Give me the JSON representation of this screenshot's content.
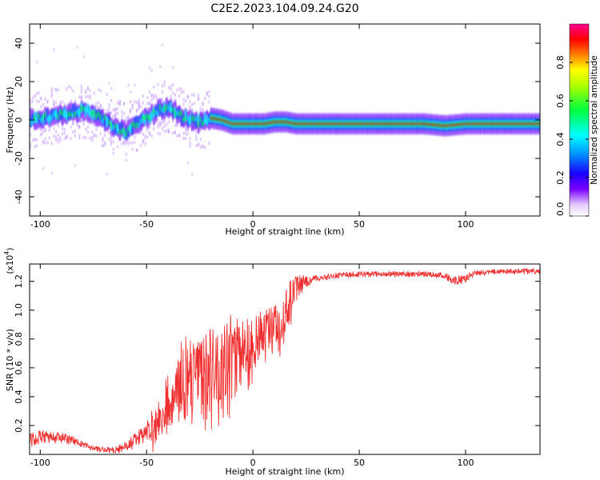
{
  "figure_title": "C2E2.2023.104.09.24.G20",
  "chart_data": [
    {
      "type": "heatmap",
      "xlabel": "Height of straight line (km)",
      "ylabel": "Frequency (Hz)",
      "xlim": [
        -105,
        135
      ],
      "ylim": [
        -50,
        50
      ],
      "x_ticks": [
        -100,
        -50,
        0,
        50,
        100
      ],
      "y_ticks": [
        -40,
        -20,
        0,
        20,
        40
      ],
      "grid": false,
      "colorbar": {
        "label": "Normalized spectral amplitude",
        "range": [
          0.0,
          1.0
        ],
        "ticks": [
          "0.0",
          "0.2",
          "0.4",
          "0.6",
          "0.8"
        ],
        "tick_values": [
          0.0,
          0.2,
          0.4,
          0.6,
          0.8
        ],
        "colormap": "rainbow (white/purple -> blue -> cyan -> green -> yellow -> red -> magenta)"
      },
      "ridge": {
        "description": "frequency of peak spectral amplitude vs height",
        "x": [
          -105,
          -100,
          -95,
          -90,
          -85,
          -80,
          -75,
          -70,
          -65,
          -60,
          -55,
          -50,
          -45,
          -40,
          -35,
          -30,
          -25,
          -20,
          -15,
          -10,
          -5,
          0,
          5,
          10,
          15,
          20,
          30,
          50,
          70,
          80,
          90,
          100,
          110,
          120,
          135
        ],
        "y": [
          0,
          1,
          2,
          3,
          4,
          5,
          3,
          0,
          -4,
          -6,
          -2,
          1,
          5,
          6,
          3,
          0,
          -1,
          1,
          0,
          -2,
          -2,
          -2,
          -2,
          -1,
          -1,
          -2,
          -2,
          -2,
          -2,
          -2,
          -3,
          -2,
          -2,
          -2,
          -2
        ]
      }
    },
    {
      "type": "line",
      "xlabel": "Height of straight line (km)",
      "ylabel": "SNR (10 * v/v)",
      "y_multiplier": "(x10",
      "y_multiplier_exponent": "4",
      "y_multiplier_close": ")",
      "xlim": [
        -105,
        135
      ],
      "ylim": [
        0.0,
        1.32
      ],
      "x_ticks": [
        -100,
        -50,
        0,
        50,
        100
      ],
      "y_ticks": [
        "0.2",
        "0.4",
        "0.6",
        "0.8",
        "1.0",
        "1.2"
      ],
      "y_tick_values": [
        0.2,
        0.4,
        0.6,
        0.8,
        1.0,
        1.2
      ],
      "grid": false,
      "color": "#f03030",
      "series": [
        {
          "x": [
            -105,
            -100,
            -95,
            -90,
            -85,
            -80,
            -75,
            -70,
            -65,
            -60,
            -55,
            -50,
            -45,
            -40,
            -35,
            -30,
            -25,
            -20,
            -15,
            -10,
            -5,
            0,
            5,
            10,
            15,
            20,
            25,
            30,
            40,
            50,
            60,
            70,
            80,
            90,
            95,
            100,
            105,
            110,
            120,
            135
          ],
          "y": [
            0.1,
            0.12,
            0.12,
            0.11,
            0.1,
            0.07,
            0.04,
            0.03,
            0.03,
            0.05,
            0.1,
            0.15,
            0.25,
            0.4,
            0.5,
            0.55,
            0.5,
            0.6,
            0.65,
            0.7,
            0.72,
            0.78,
            0.85,
            0.85,
            1.0,
            1.15,
            1.2,
            1.22,
            1.24,
            1.25,
            1.25,
            1.25,
            1.25,
            1.24,
            1.2,
            1.22,
            1.26,
            1.26,
            1.27,
            1.27
          ],
          "noise": [
            0.05,
            0.05,
            0.04,
            0.04,
            0.03,
            0.02,
            0.02,
            0.02,
            0.02,
            0.04,
            0.05,
            0.08,
            0.15,
            0.2,
            0.28,
            0.3,
            0.3,
            0.28,
            0.3,
            0.28,
            0.22,
            0.18,
            0.15,
            0.18,
            0.15,
            0.1,
            0.04,
            0.02,
            0.02,
            0.02,
            0.02,
            0.02,
            0.02,
            0.02,
            0.03,
            0.03,
            0.02,
            0.02,
            0.02,
            0.02
          ]
        }
      ]
    }
  ]
}
